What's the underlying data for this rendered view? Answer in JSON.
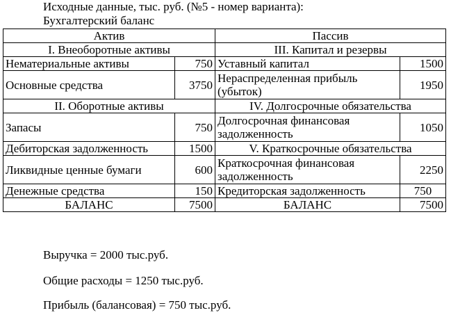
{
  "heading": {
    "line1": "Исходные данные, тыс. руб. (№5 - номер варианта):",
    "line2": "Бухгалтерский баланс"
  },
  "table": {
    "header": {
      "asset": "Актив",
      "liability": "Пассив"
    },
    "rows": [
      {
        "a_section": "I. Внеоборотные активы",
        "p_section": "III. Капитал и резервы"
      },
      {
        "a_label": "Нематериальные активы",
        "a_value": "750",
        "p_label": "Уставный капитал",
        "p_value": "1500"
      },
      {
        "a_label": "Основные средства",
        "a_value": "3750",
        "p_label": "Нераспределенная прибыль (убыток)",
        "p_value": "1950"
      },
      {
        "a_section": "II. Оборотные активы",
        "p_section": "IV. Долгосрочные обязательства"
      },
      {
        "a_label": "Запасы",
        "a_value": "750",
        "p_label": "Долгосрочная финансовая задолженность",
        "p_value": "1050"
      },
      {
        "a_label": "Дебиторская задолженность",
        "a_value": "1500",
        "p_section": "V. Краткосрочные обязательства"
      },
      {
        "a_label": "Ликвидные ценные бумаги",
        "a_value": "600",
        "p_label": "Краткосрочная финансовая задолженность",
        "p_value": "2250"
      },
      {
        "a_label": "Денежные средства",
        "a_value": "150",
        "p_label": "Кредиторская задолженность",
        "p_value": "750"
      },
      {
        "a_label": "БАЛАНС",
        "a_value": "7500",
        "p_label": "БАЛАНС",
        "p_value": "7500"
      }
    ]
  },
  "metrics": {
    "revenue": "Выручка =  2000 тыс.руб.",
    "expenses": "Общие расходы = 1250 тыс.руб.",
    "profit": "Прибыль (балансовая) = 750 тыс.руб."
  }
}
